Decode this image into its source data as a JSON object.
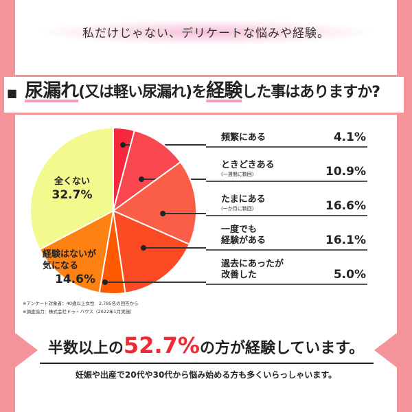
{
  "tagline": "私だけじゃない、デリケートな悩みや経験。",
  "question": {
    "marker": "■",
    "part1": "尿漏れ",
    "part2": "(又は軽い尿漏れ)を",
    "part3": "経験",
    "part4": "した事はありますか?"
  },
  "chart_data": {
    "type": "pie",
    "start": "top",
    "direction": "clockwise",
    "slices": [
      {
        "label": "頻繁にある",
        "sub": "",
        "value": 4.1,
        "display": "4.1%",
        "color": "#f5283c"
      },
      {
        "label": "ときどきある",
        "sub": "(一週間に数回)",
        "value": 10.9,
        "display": "10.9%",
        "color": "#f9474f"
      },
      {
        "label": "たまにある",
        "sub": "(一か月に数回)",
        "value": 16.6,
        "display": "16.6%",
        "color": "#fb5e46"
      },
      {
        "label": "一度でも\n経験がある",
        "sub": "",
        "value": 16.1,
        "display": "16.1%",
        "color": "#fb4b25"
      },
      {
        "label": "過去にあったが\n改善した",
        "sub": "",
        "value": 5.0,
        "display": "5.0%",
        "color": "#fe5a00"
      },
      {
        "label": "経験はないが\n気になる",
        "sub": "",
        "value": 14.6,
        "display": "14.6%",
        "color": "#fe8114"
      },
      {
        "label": "全くない",
        "sub": "",
        "value": 32.7,
        "display": "32.7%",
        "color": "#f3f98c"
      }
    ]
  },
  "notes": [
    "※アンケート対象者：40歳以上女性　2,785名の回答から",
    "※調査協力：株式会社ドゥ・ハウス（2022年1月実施）"
  ],
  "headline": {
    "pre": "半数以上の",
    "pct": "52.7%",
    "post": "の方が経験しています。"
  },
  "subline": "妊娠や出産で20代や30代から悩み始める方も多くいらっしゃいます。",
  "colors": {
    "border": "#f4939a",
    "accent": "#ee2a38",
    "underline": "#f49ac2"
  }
}
